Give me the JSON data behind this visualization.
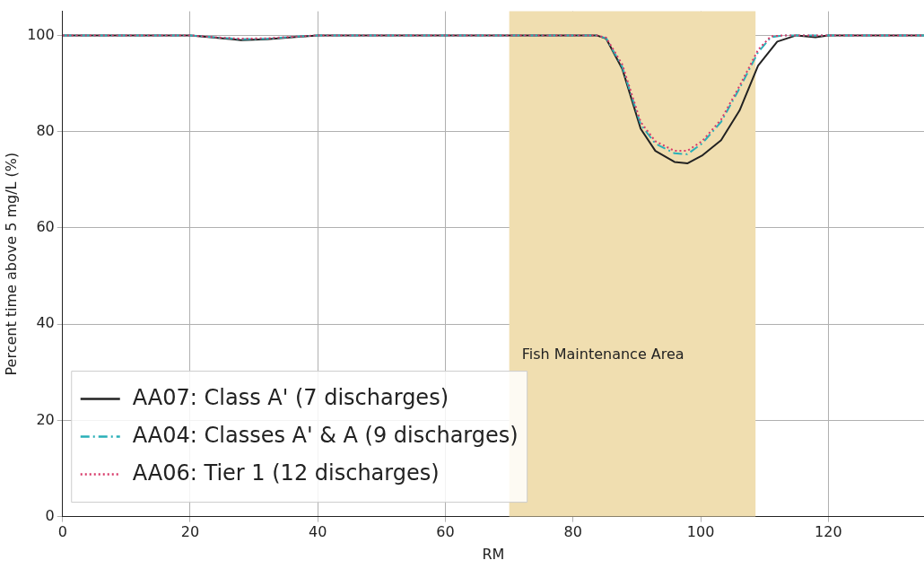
{
  "chart_data": {
    "type": "line",
    "xlabel": "RM",
    "ylabel": "Percent time above 5 mg/L (%)",
    "xlim": [
      0,
      135
    ],
    "ylim": [
      0,
      105
    ],
    "xticks": [
      0,
      20,
      40,
      60,
      80,
      100,
      120
    ],
    "yticks": [
      0,
      20,
      40,
      60,
      80,
      100
    ],
    "grid": true,
    "legend": "bottom left",
    "bands": [
      {
        "axis": "x",
        "from": 70,
        "to": 108.6,
        "label": "Fish Maintenance Area",
        "color": "#f0deb0"
      }
    ],
    "series": [
      {
        "name": "AA07: Class A' (7 discharges)",
        "color": "#222222",
        "line_style": "solid",
        "x": [
          0,
          10,
          20,
          24,
          28,
          32,
          36,
          40,
          50,
          60,
          70,
          80,
          83.7,
          85.2,
          87.7,
          90.6,
          92.9,
          95.9,
          97.9,
          100.2,
          103.2,
          106.1,
          109,
          112,
          115,
          118,
          120,
          125,
          130,
          135
        ],
        "values": [
          100,
          100,
          100,
          99.5,
          99,
          99.2,
          99.6,
          100,
          100,
          100,
          100,
          100,
          100,
          99.3,
          93.1,
          80.6,
          76,
          73.7,
          73.4,
          75,
          78.2,
          84.4,
          93.7,
          98.7,
          100,
          99.6,
          100,
          100,
          100,
          100
        ]
      },
      {
        "name": "AA04: Classes A' & A (9 discharges)",
        "color": "#2ab0b8",
        "line_style": "dashdot",
        "x": [
          0,
          10,
          20,
          24,
          28,
          32,
          36,
          40,
          50,
          60,
          70,
          80,
          83.7,
          85.2,
          87.7,
          90.6,
          92.9,
          95.9,
          97.9,
          100.2,
          103.2,
          106.1,
          109,
          111,
          113,
          120,
          125,
          130,
          135
        ],
        "values": [
          100,
          100,
          100,
          99.6,
          99.2,
          99.3,
          99.7,
          100,
          100,
          100,
          100,
          100,
          100,
          99.4,
          93.5,
          81.5,
          77.5,
          75.5,
          75.3,
          77.5,
          82,
          89,
          96.5,
          99.6,
          100,
          100,
          100,
          100,
          100
        ]
      },
      {
        "name": "AA06: Tier 1 (12 discharges)",
        "color": "#d83a6a",
        "line_style": "dotted",
        "x": [
          0,
          10,
          20,
          24,
          28,
          32,
          36,
          40,
          50,
          60,
          70,
          80,
          83.7,
          85.2,
          87.7,
          90.6,
          92.9,
          95.9,
          97.9,
          100.2,
          103.2,
          106.1,
          109,
          111,
          113,
          120,
          125,
          130,
          135
        ],
        "values": [
          100,
          100,
          100,
          99.6,
          99.3,
          99.4,
          99.7,
          100,
          100,
          100,
          100,
          100,
          100,
          99.5,
          94,
          82,
          78,
          76,
          76,
          78,
          82.5,
          89.5,
          97,
          99.8,
          100,
          100,
          100,
          100,
          100
        ]
      }
    ]
  }
}
